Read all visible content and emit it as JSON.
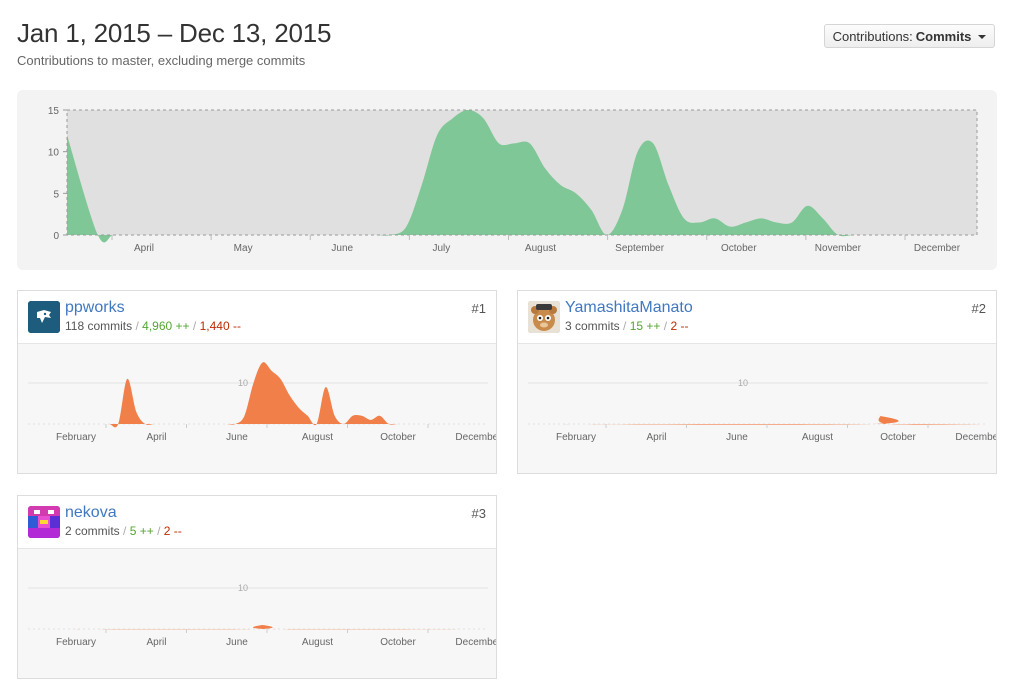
{
  "header": {
    "title": "Jan 1, 2015 – Dec 13, 2015",
    "subtitle": "Contributions to master, excluding merge commits"
  },
  "contributions_select": {
    "label": "Contributions:",
    "value": "Commits"
  },
  "colors": {
    "main_area": "#7fc796",
    "contributor_area": "#f17f49",
    "link": "#4078c0",
    "additions": "#55a532",
    "deletions": "#bd2c00"
  },
  "chart_data": [
    {
      "type": "area",
      "ylim": [
        0,
        15
      ],
      "yticks": [
        0,
        5,
        10,
        15
      ],
      "month_labels": [
        "April",
        "May",
        "June",
        "July",
        "August",
        "September",
        "October",
        "November",
        "December"
      ],
      "points": [
        [
          0,
          12
        ],
        [
          2,
          0
        ],
        [
          3,
          0
        ],
        [
          4,
          0
        ],
        [
          5,
          0
        ],
        [
          6,
          0
        ],
        [
          7,
          0
        ],
        [
          8,
          0
        ],
        [
          9,
          0
        ],
        [
          10,
          0
        ],
        [
          11,
          0
        ],
        [
          12,
          0
        ],
        [
          13,
          0
        ],
        [
          14,
          0
        ],
        [
          15,
          0
        ],
        [
          16,
          0
        ],
        [
          17,
          0
        ],
        [
          18,
          0
        ],
        [
          19,
          0
        ],
        [
          20,
          0
        ],
        [
          21,
          0
        ],
        [
          22,
          1
        ],
        [
          23,
          6
        ],
        [
          24,
          12
        ],
        [
          25,
          14
        ],
        [
          26,
          15
        ],
        [
          27,
          14
        ],
        [
          28,
          11
        ],
        [
          29,
          11
        ],
        [
          30,
          11
        ],
        [
          31,
          8
        ],
        [
          32,
          6
        ],
        [
          33,
          5
        ],
        [
          34,
          3
        ],
        [
          35,
          0
        ],
        [
          36,
          3
        ],
        [
          37,
          10
        ],
        [
          38,
          11
        ],
        [
          39,
          6
        ],
        [
          40,
          2
        ],
        [
          41,
          1.5
        ],
        [
          42,
          2
        ],
        [
          43,
          1
        ],
        [
          44,
          1.5
        ],
        [
          45,
          2
        ],
        [
          46,
          1.5
        ],
        [
          47,
          1.5
        ],
        [
          48,
          3.5
        ],
        [
          49,
          2
        ],
        [
          50,
          0
        ],
        [
          51,
          0
        ],
        [
          52,
          0
        ],
        [
          53,
          0
        ],
        [
          54,
          0
        ],
        [
          55,
          0
        ],
        [
          56,
          0
        ],
        [
          57,
          0
        ],
        [
          58,
          0
        ],
        [
          59,
          0
        ]
      ]
    },
    {
      "type": "area",
      "gridline": [
        10
      ],
      "month_labels": [
        "February",
        "April",
        "June",
        "August",
        "October",
        "December"
      ],
      "points": [
        [
          0,
          0
        ],
        [
          1,
          0
        ],
        [
          2,
          0
        ],
        [
          3,
          0
        ],
        [
          4,
          0
        ],
        [
          5,
          0
        ],
        [
          6,
          0
        ],
        [
          7,
          0
        ],
        [
          8,
          0
        ],
        [
          9,
          0
        ],
        [
          10,
          0
        ],
        [
          11,
          11
        ],
        [
          12,
          3
        ],
        [
          13,
          0
        ],
        [
          14,
          0
        ],
        [
          15,
          0
        ],
        [
          16,
          0
        ],
        [
          17,
          0
        ],
        [
          18,
          0
        ],
        [
          19,
          0
        ],
        [
          20,
          0
        ],
        [
          21,
          0
        ],
        [
          22,
          0
        ],
        [
          23,
          0
        ],
        [
          24,
          2
        ],
        [
          25,
          10
        ],
        [
          26,
          15
        ],
        [
          27,
          13
        ],
        [
          28,
          11
        ],
        [
          29,
          7
        ],
        [
          30,
          4
        ],
        [
          31,
          2
        ],
        [
          32,
          0
        ],
        [
          33,
          9
        ],
        [
          34,
          2
        ],
        [
          35,
          0
        ],
        [
          36,
          2
        ],
        [
          37,
          2
        ],
        [
          38,
          1
        ],
        [
          39,
          2
        ],
        [
          40,
          0
        ],
        [
          41,
          0
        ],
        [
          42,
          0
        ],
        [
          43,
          0
        ],
        [
          44,
          0
        ],
        [
          45,
          0
        ],
        [
          46,
          0
        ],
        [
          47,
          0
        ],
        [
          48,
          0
        ],
        [
          49,
          0
        ],
        [
          50,
          0
        ],
        [
          51,
          0
        ]
      ]
    },
    {
      "type": "area",
      "gridline": [
        10
      ],
      "month_labels": [
        "February",
        "April",
        "June",
        "August",
        "October",
        "December"
      ],
      "points": [
        [
          0,
          0
        ],
        [
          38,
          0
        ],
        [
          39,
          2
        ],
        [
          40,
          0
        ],
        [
          51,
          0
        ]
      ]
    },
    {
      "type": "area",
      "gridline": [
        10
      ],
      "month_labels": [
        "February",
        "April",
        "June",
        "August",
        "October",
        "December"
      ],
      "points": [
        [
          0,
          0
        ],
        [
          25,
          0
        ],
        [
          26,
          1
        ],
        [
          27,
          0
        ],
        [
          51,
          0
        ]
      ]
    }
  ],
  "contributors": [
    {
      "name": "ppworks",
      "rank": "#1",
      "commits": "118 commits",
      "additions": "4,960 ++",
      "deletions": "1,440 --",
      "separator": "/"
    },
    {
      "name": "YamashitaManato",
      "rank": "#2",
      "commits": "3 commits",
      "additions": "15 ++",
      "deletions": "2 --",
      "separator": "/"
    },
    {
      "name": "nekova",
      "rank": "#3",
      "commits": "2 commits",
      "additions": "5 ++",
      "deletions": "2 --",
      "separator": "/"
    }
  ]
}
